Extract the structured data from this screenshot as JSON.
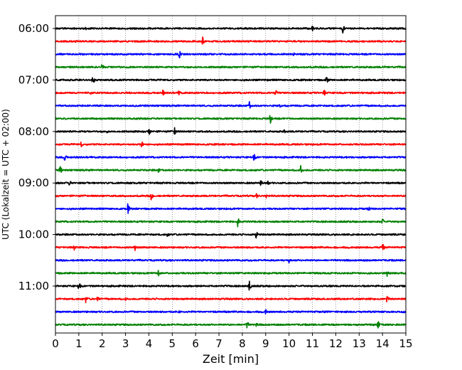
{
  "chart_data": {
    "type": "line",
    "title": "",
    "xlabel": "Zeit  [min]",
    "ylabel": "UTC (Lokalzeit = UTC + 02:00)",
    "xlim": [
      0,
      15
    ],
    "x_ticks": [
      0,
      1,
      2,
      3,
      4,
      5,
      6,
      7,
      8,
      9,
      10,
      11,
      12,
      13,
      14,
      15
    ],
    "x_grid": true,
    "line_interval_min": 15,
    "start_time": "06:00",
    "y_tick_labels": [
      "06:00",
      "07:00",
      "08:00",
      "09:00",
      "10:00",
      "11:00"
    ],
    "colors": [
      "#000000",
      "#ff0000",
      "#0000ff",
      "#008000"
    ],
    "series": [
      {
        "label": "06:00",
        "color": "#000000",
        "events": [
          [
            1.3,
            0.25
          ],
          [
            9.9,
            0.3
          ],
          [
            11.0,
            0.45
          ],
          [
            12.3,
            0.85
          ]
        ]
      },
      {
        "label": "06:15",
        "color": "#ff0000",
        "events": [
          [
            6.3,
            0.75
          ],
          [
            7.6,
            0.2
          ]
        ]
      },
      {
        "label": "06:30",
        "color": "#0000ff",
        "events": [
          [
            5.3,
            0.8
          ],
          [
            10.2,
            0.3
          ]
        ]
      },
      {
        "label": "06:45",
        "color": "#008000",
        "events": [
          [
            2.0,
            0.7
          ],
          [
            14.1,
            0.2
          ]
        ]
      },
      {
        "label": "07:00",
        "color": "#000000",
        "events": [
          [
            1.6,
            0.8
          ],
          [
            9.1,
            0.3
          ],
          [
            11.6,
            0.8
          ]
        ]
      },
      {
        "label": "07:15",
        "color": "#ff0000",
        "events": [
          [
            1.5,
            0.3
          ],
          [
            4.6,
            0.55
          ],
          [
            5.3,
            0.55
          ],
          [
            9.4,
            0.85
          ],
          [
            11.5,
            0.7
          ]
        ]
      },
      {
        "label": "07:30",
        "color": "#0000ff",
        "events": [
          [
            8.3,
            0.75
          ],
          [
            9.6,
            0.4
          ]
        ]
      },
      {
        "label": "07:45",
        "color": "#008000",
        "events": [
          [
            9.2,
            0.85
          ]
        ]
      },
      {
        "label": "08:00",
        "color": "#000000",
        "events": [
          [
            2.2,
            0.35
          ],
          [
            4.0,
            0.85
          ],
          [
            5.1,
            0.75
          ],
          [
            9.8,
            0.35
          ]
        ]
      },
      {
        "label": "08:15",
        "color": "#ff0000",
        "events": [
          [
            1.1,
            0.55
          ],
          [
            3.7,
            0.85
          ],
          [
            5.4,
            0.3
          ]
        ]
      },
      {
        "label": "08:30",
        "color": "#0000ff",
        "events": [
          [
            0.4,
            0.7
          ],
          [
            8.5,
            0.75
          ]
        ]
      },
      {
        "label": "08:45",
        "color": "#008000",
        "events": [
          [
            0.2,
            0.8
          ],
          [
            4.4,
            0.45
          ],
          [
            10.5,
            0.75
          ]
        ]
      },
      {
        "label": "09:00",
        "color": "#000000",
        "events": [
          [
            0.6,
            0.5
          ],
          [
            8.8,
            0.7
          ],
          [
            9.1,
            0.4
          ]
        ]
      },
      {
        "label": "09:15",
        "color": "#ff0000",
        "events": [
          [
            4.1,
            0.75
          ],
          [
            8.6,
            0.4
          ],
          [
            9.0,
            0.55
          ]
        ]
      },
      {
        "label": "09:30",
        "color": "#0000ff",
        "events": [
          [
            3.1,
            0.85
          ],
          [
            13.4,
            0.5
          ]
        ]
      },
      {
        "label": "09:45",
        "color": "#008000",
        "events": [
          [
            7.8,
            0.85
          ],
          [
            14.0,
            0.6
          ]
        ]
      },
      {
        "label": "10:00",
        "color": "#000000",
        "events": [
          [
            4.8,
            0.4
          ],
          [
            8.6,
            0.9
          ]
        ]
      },
      {
        "label": "10:15",
        "color": "#ff0000",
        "events": [
          [
            0.8,
            0.45
          ],
          [
            3.4,
            0.6
          ],
          [
            14.0,
            0.85
          ]
        ]
      },
      {
        "label": "10:30",
        "color": "#0000ff",
        "events": [
          [
            10.0,
            0.55
          ]
        ]
      },
      {
        "label": "10:45",
        "color": "#008000",
        "events": [
          [
            4.4,
            0.7
          ],
          [
            14.2,
            0.55
          ]
        ]
      },
      {
        "label": "11:00",
        "color": "#000000",
        "events": [
          [
            1.0,
            0.8
          ],
          [
            8.3,
            0.95
          ]
        ]
      },
      {
        "label": "11:15",
        "color": "#ff0000",
        "events": [
          [
            1.3,
            0.65
          ],
          [
            1.8,
            0.5
          ],
          [
            3.0,
            0.35
          ],
          [
            14.2,
            0.9
          ]
        ]
      },
      {
        "label": "11:30",
        "color": "#0000ff",
        "events": [
          [
            5.3,
            0.3
          ],
          [
            9.0,
            0.55
          ]
        ]
      },
      {
        "label": "11:45",
        "color": "#008000",
        "events": [
          [
            8.2,
            0.7
          ],
          [
            8.6,
            0.4
          ],
          [
            13.8,
            0.8
          ]
        ]
      }
    ]
  }
}
